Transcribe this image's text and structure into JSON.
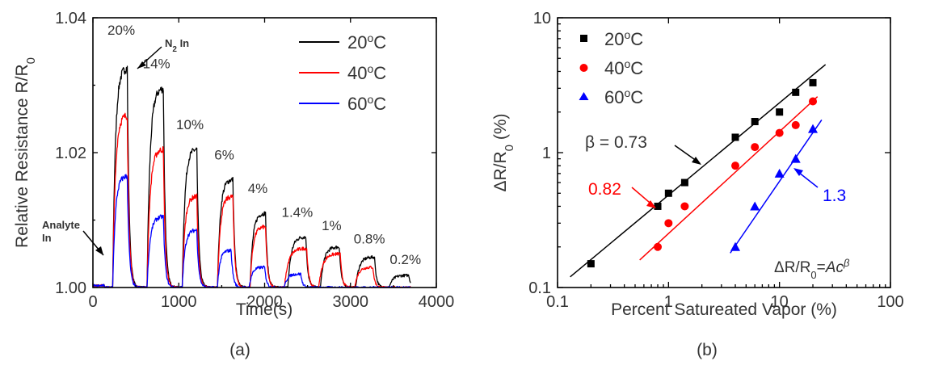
{
  "chart_data": [
    {
      "panel_label": "(a)",
      "type": "line",
      "xlabel": "Time(s)",
      "ylabel": "Relative Resistance R/R",
      "ylabel_sub": "0",
      "xlim": [
        0,
        4000
      ],
      "ylim": [
        1.0,
        1.04
      ],
      "xticks": [
        0,
        1000,
        2000,
        3000,
        4000
      ],
      "xtick_labels": [
        "0",
        "1000",
        "2000",
        "3000",
        "4000"
      ],
      "yticks": [
        1.0,
        1.02,
        1.04
      ],
      "ytick_labels": [
        "1.00",
        "1.02",
        "1.04"
      ],
      "legend_position": "top-right",
      "series": [
        {
          "name": "20",
          "name_sup": "o",
          "name_unit": "C",
          "color": "#000000",
          "peaks": [
            {
              "start": 230,
              "end": 400,
              "peak": 1.0325
            },
            {
              "start": 630,
              "end": 820,
              "peak": 1.0295
            },
            {
              "start": 1040,
              "end": 1210,
              "peak": 1.0205
            },
            {
              "start": 1450,
              "end": 1630,
              "peak": 1.016
            },
            {
              "start": 1830,
              "end": 2010,
              "peak": 1.011
            },
            {
              "start": 2270,
              "end": 2480,
              "peak": 1.0075
            },
            {
              "start": 2650,
              "end": 2870,
              "peak": 1.006
            },
            {
              "start": 3060,
              "end": 3280,
              "peak": 1.0045
            },
            {
              "start": 3450,
              "end": 3680,
              "peak": 1.0018
            }
          ]
        },
        {
          "name": "40",
          "name_sup": "o",
          "name_unit": "C",
          "color": "#ff0000",
          "peaks": [
            {
              "start": 230,
              "end": 400,
              "peak": 1.0255
            },
            {
              "start": 630,
              "end": 820,
              "peak": 1.0205
            },
            {
              "start": 1040,
              "end": 1210,
              "peak": 1.0135
            },
            {
              "start": 1450,
              "end": 1630,
              "peak": 1.0135
            },
            {
              "start": 1830,
              "end": 2010,
              "peak": 1.009
            },
            {
              "start": 2230,
              "end": 2490,
              "peak": 1.0058
            },
            {
              "start": 2630,
              "end": 2880,
              "peak": 1.005
            },
            {
              "start": 3050,
              "end": 3260,
              "peak": 1.003
            }
          ]
        },
        {
          "name": "60",
          "name_sup": "o",
          "name_unit": "C",
          "color": "#0000ff",
          "peaks": [
            {
              "start": 230,
              "end": 400,
              "peak": 1.0165
            },
            {
              "start": 630,
              "end": 820,
              "peak": 1.0105
            },
            {
              "start": 1040,
              "end": 1210,
              "peak": 1.0085
            },
            {
              "start": 1450,
              "end": 1610,
              "peak": 1.0055
            },
            {
              "start": 1820,
              "end": 2000,
              "peak": 1.003
            },
            {
              "start": 2230,
              "end": 2420,
              "peak": 1.002
            }
          ]
        }
      ],
      "annotations": [
        {
          "text": "20%",
          "x": 330,
          "y": 1.0375
        },
        {
          "text": "14%",
          "x": 740,
          "y": 1.0325
        },
        {
          "text": "10%",
          "x": 1130,
          "y": 1.0235
        },
        {
          "text": "6%",
          "x": 1530,
          "y": 1.019
        },
        {
          "text": "4%",
          "x": 1920,
          "y": 1.014
        },
        {
          "text": "1.4%",
          "x": 2380,
          "y": 1.0105
        },
        {
          "text": "1%",
          "x": 2780,
          "y": 1.0085
        },
        {
          "text": "0.8%",
          "x": 3220,
          "y": 1.0065
        },
        {
          "text": "0.2%",
          "x": 3640,
          "y": 1.0035
        }
      ],
      "callouts": {
        "n2_in": {
          "text": "N",
          "sub": "2",
          "suffix": " In"
        },
        "analyte_in": {
          "line1": "Analyte",
          "line2": "In"
        }
      }
    },
    {
      "panel_label": "(b)",
      "type": "scatter",
      "xscale": "log",
      "yscale": "log",
      "xlabel": "Percent Satureated Vapor (%)",
      "ylabel": "ΔR/R",
      "ylabel_sub": "0",
      "ylabel_unit": " (%)",
      "xlim": [
        0.1,
        100
      ],
      "ylim": [
        0.1,
        10
      ],
      "xticks": [
        0.1,
        1,
        10,
        100
      ],
      "xtick_labels": [
        "0.1",
        "1",
        "10",
        "100"
      ],
      "yticks": [
        0.1,
        1,
        10
      ],
      "ytick_labels": [
        "0.1",
        "1",
        "10"
      ],
      "legend_position": "top-left",
      "series": [
        {
          "name": "20",
          "name_sup": "o",
          "name_unit": "C",
          "color": "#000000",
          "marker": "square",
          "x": [
            0.2,
            0.8,
            1.0,
            1.4,
            4,
            6,
            10,
            14,
            20
          ],
          "y": [
            0.15,
            0.4,
            0.5,
            0.6,
            1.3,
            1.7,
            2.0,
            2.8,
            3.3
          ],
          "fit": {
            "x1": 0.13,
            "y1": 0.12,
            "x2": 26,
            "y2": 4.5
          }
        },
        {
          "name": "40",
          "name_sup": "o",
          "name_unit": "C",
          "color": "#ff0000",
          "marker": "circle",
          "x": [
            0.8,
            1.0,
            1.4,
            4,
            6,
            10,
            14,
            20
          ],
          "y": [
            0.2,
            0.3,
            0.4,
            0.8,
            1.1,
            1.4,
            1.6,
            2.4
          ],
          "fit": {
            "x1": 0.55,
            "y1": 0.16,
            "x2": 22,
            "y2": 2.6
          }
        },
        {
          "name": "60",
          "name_sup": "o",
          "name_unit": "C",
          "color": "#0000ff",
          "marker": "triangle",
          "x": [
            4,
            6,
            10,
            14,
            20
          ],
          "y": [
            0.2,
            0.4,
            0.7,
            0.9,
            1.5
          ],
          "fit": {
            "x1": 3.6,
            "y1": 0.18,
            "x2": 24,
            "y2": 1.75
          }
        }
      ],
      "annotations": {
        "beta_black": {
          "text": "β = 0.73"
        },
        "beta_red": {
          "text": "0.82"
        },
        "beta_blue": {
          "text": "1.3"
        },
        "formula": {
          "text": "ΔR/R",
          "sub": "0",
          "mid": "=",
          "italic": "Ac",
          "sup": "β"
        }
      }
    }
  ]
}
